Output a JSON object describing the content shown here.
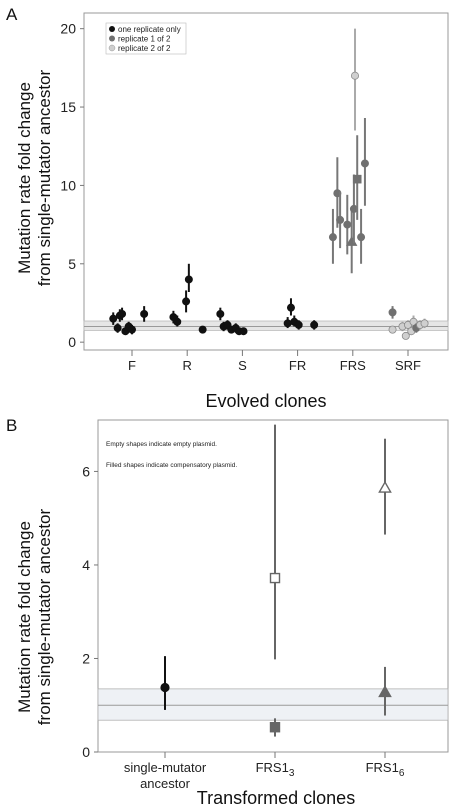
{
  "chart_data": [
    {
      "type": "scatter",
      "panel": "A",
      "ylabel_line1": "Mutation rate fold change",
      "ylabel_line2": "from single-mutator ancestor",
      "xlabel": "Evolved clones",
      "categories": [
        "F",
        "R",
        "S",
        "FR",
        "FRS",
        "SRF"
      ],
      "yticks": [
        "0",
        "5",
        "10",
        "15",
        "20"
      ],
      "ylim": [
        -0.5,
        21
      ],
      "ancestor_band": {
        "center": 1.0,
        "low": 0.75,
        "high": 1.35
      },
      "legend": {
        "placement": "top-left",
        "entries": [
          {
            "label": "one replicate only",
            "color": "#111111"
          },
          {
            "label": "replicate 1 of 2",
            "color": "#707070"
          },
          {
            "label": "replicate 2 of 2",
            "color": "#cfcfcf"
          }
        ]
      },
      "points": [
        {
          "cat": "F",
          "dx": -0.34,
          "y": 1.5,
          "lo": 1.1,
          "hi": 1.9,
          "group": "one",
          "shape": "circle"
        },
        {
          "cat": "F",
          "dx": -0.26,
          "y": 0.9,
          "lo": 0.6,
          "hi": 1.2,
          "group": "one",
          "shape": "circle"
        },
        {
          "cat": "F",
          "dx": -0.22,
          "y": 1.7,
          "lo": 1.3,
          "hi": 2.1,
          "group": "one",
          "shape": "circle"
        },
        {
          "cat": "F",
          "dx": -0.18,
          "y": 1.8,
          "lo": 1.4,
          "hi": 2.2,
          "group": "one",
          "shape": "circle"
        },
        {
          "cat": "F",
          "dx": -0.12,
          "y": 0.7,
          "lo": 0.5,
          "hi": 0.95,
          "group": "one",
          "shape": "circle"
        },
        {
          "cat": "F",
          "dx": -0.06,
          "y": 1.0,
          "lo": 0.7,
          "hi": 1.3,
          "group": "one",
          "shape": "circle"
        },
        {
          "cat": "F",
          "dx": 0.0,
          "y": 0.8,
          "lo": 0.5,
          "hi": 1.1,
          "group": "one",
          "shape": "circle"
        },
        {
          "cat": "F",
          "dx": 0.22,
          "y": 1.8,
          "lo": 1.3,
          "hi": 2.3,
          "group": "one",
          "shape": "circle"
        },
        {
          "cat": "R",
          "dx": -0.25,
          "y": 1.6,
          "lo": 1.2,
          "hi": 2.0,
          "group": "one",
          "shape": "circle"
        },
        {
          "cat": "R",
          "dx": -0.18,
          "y": 1.3,
          "lo": 1.0,
          "hi": 1.7,
          "group": "one",
          "shape": "circle"
        },
        {
          "cat": "R",
          "dx": -0.02,
          "y": 2.6,
          "lo": 1.9,
          "hi": 3.3,
          "group": "one",
          "shape": "circle"
        },
        {
          "cat": "R",
          "dx": 0.03,
          "y": 4.0,
          "lo": 3.2,
          "hi": 5.0,
          "group": "one",
          "shape": "circle"
        },
        {
          "cat": "R",
          "dx": 0.28,
          "y": 0.8,
          "lo": 0.6,
          "hi": 1.0,
          "group": "one",
          "shape": "circle"
        },
        {
          "cat": "S",
          "dx": -0.4,
          "y": 1.8,
          "lo": 1.4,
          "hi": 2.2,
          "group": "one",
          "shape": "circle"
        },
        {
          "cat": "S",
          "dx": -0.34,
          "y": 1.0,
          "lo": 0.7,
          "hi": 1.3,
          "group": "one",
          "shape": "circle"
        },
        {
          "cat": "S",
          "dx": -0.27,
          "y": 1.1,
          "lo": 0.8,
          "hi": 1.4,
          "group": "one",
          "shape": "circle"
        },
        {
          "cat": "S",
          "dx": -0.2,
          "y": 0.8,
          "lo": 0.6,
          "hi": 1.0,
          "group": "one",
          "shape": "circle"
        },
        {
          "cat": "S",
          "dx": -0.12,
          "y": 0.9,
          "lo": 0.6,
          "hi": 1.2,
          "group": "one",
          "shape": "circle"
        },
        {
          "cat": "S",
          "dx": -0.06,
          "y": 0.7,
          "lo": 0.5,
          "hi": 0.9,
          "group": "one",
          "shape": "circle"
        },
        {
          "cat": "S",
          "dx": 0.02,
          "y": 0.7,
          "lo": 0.5,
          "hi": 0.9,
          "group": "one",
          "shape": "circle"
        },
        {
          "cat": "FR",
          "dx": -0.18,
          "y": 1.2,
          "lo": 0.9,
          "hi": 1.6,
          "group": "one",
          "shape": "circle"
        },
        {
          "cat": "FR",
          "dx": -0.12,
          "y": 2.2,
          "lo": 1.7,
          "hi": 2.8,
          "group": "one",
          "shape": "circle"
        },
        {
          "cat": "FR",
          "dx": -0.06,
          "y": 1.3,
          "lo": 1.0,
          "hi": 1.7,
          "group": "one",
          "shape": "circle"
        },
        {
          "cat": "FR",
          "dx": 0.02,
          "y": 1.1,
          "lo": 0.8,
          "hi": 1.4,
          "group": "one",
          "shape": "circle"
        },
        {
          "cat": "FR",
          "dx": 0.3,
          "y": 1.1,
          "lo": 0.8,
          "hi": 1.4,
          "group": "one",
          "shape": "circle"
        },
        {
          "cat": "FRS",
          "dx": -0.36,
          "y": 6.7,
          "lo": 5.0,
          "hi": 8.5,
          "group": "rep1",
          "shape": "circle"
        },
        {
          "cat": "FRS",
          "dx": -0.28,
          "y": 9.5,
          "lo": 7.3,
          "hi": 11.8,
          "group": "rep1",
          "shape": "circle"
        },
        {
          "cat": "FRS",
          "dx": -0.23,
          "y": 7.8,
          "lo": 6.0,
          "hi": 9.6,
          "group": "rep1",
          "shape": "circle"
        },
        {
          "cat": "FRS",
          "dx": -0.1,
          "y": 7.5,
          "lo": 5.6,
          "hi": 9.4,
          "group": "rep1",
          "shape": "circle"
        },
        {
          "cat": "FRS",
          "dx": -0.02,
          "y": 6.4,
          "lo": 4.4,
          "hi": 8.5,
          "group": "rep1",
          "shape": "triangle"
        },
        {
          "cat": "FRS",
          "dx": 0.02,
          "y": 8.5,
          "lo": 6.3,
          "hi": 10.7,
          "group": "rep1",
          "shape": "circle"
        },
        {
          "cat": "FRS",
          "dx": 0.04,
          "y": 17.0,
          "lo": 13.5,
          "hi": 20.0,
          "group": "rep2",
          "shape": "circle"
        },
        {
          "cat": "FRS",
          "dx": 0.08,
          "y": 10.4,
          "lo": 7.8,
          "hi": 13.2,
          "group": "rep1",
          "shape": "square"
        },
        {
          "cat": "FRS",
          "dx": 0.15,
          "y": 6.7,
          "lo": 5.0,
          "hi": 8.5,
          "group": "rep1",
          "shape": "circle"
        },
        {
          "cat": "FRS",
          "dx": 0.22,
          "y": 11.4,
          "lo": 8.7,
          "hi": 14.3,
          "group": "rep1",
          "shape": "circle"
        },
        {
          "cat": "SRF",
          "dx": -0.28,
          "y": 1.9,
          "lo": 1.5,
          "hi": 2.3,
          "group": "rep1",
          "shape": "circle"
        },
        {
          "cat": "SRF",
          "dx": -0.28,
          "y": 0.8,
          "lo": 0.6,
          "hi": 1.0,
          "group": "rep2",
          "shape": "circle"
        },
        {
          "cat": "SRF",
          "dx": -0.1,
          "y": 1.0,
          "lo": 0.7,
          "hi": 1.3,
          "group": "rep2",
          "shape": "circle"
        },
        {
          "cat": "SRF",
          "dx": -0.04,
          "y": 0.4,
          "lo": 0.2,
          "hi": 0.6,
          "group": "rep2",
          "shape": "circle"
        },
        {
          "cat": "SRF",
          "dx": 0.0,
          "y": 1.1,
          "lo": 0.8,
          "hi": 1.4,
          "group": "rep2",
          "shape": "circle"
        },
        {
          "cat": "SRF",
          "dx": 0.06,
          "y": 0.7,
          "lo": 0.5,
          "hi": 0.95,
          "group": "rep2",
          "shape": "circle"
        },
        {
          "cat": "SRF",
          "dx": 0.1,
          "y": 1.3,
          "lo": 1.0,
          "hi": 1.7,
          "group": "rep2",
          "shape": "circle"
        },
        {
          "cat": "SRF",
          "dx": 0.15,
          "y": 0.9,
          "lo": 0.6,
          "hi": 1.2,
          "group": "rep1",
          "shape": "circle"
        },
        {
          "cat": "SRF",
          "dx": 0.22,
          "y": 1.1,
          "lo": 0.8,
          "hi": 1.4,
          "group": "rep2",
          "shape": "circle"
        },
        {
          "cat": "SRF",
          "dx": 0.3,
          "y": 1.2,
          "lo": 0.9,
          "hi": 1.5,
          "group": "rep2",
          "shape": "circle"
        }
      ]
    },
    {
      "type": "scatter",
      "panel": "B",
      "ylabel_line1": "Mutation rate fold change",
      "ylabel_line2": "from single-mutator ancestor",
      "xlabel": "Transformed clones",
      "categories": [
        {
          "line1": "single-mutator",
          "line2": "ancestor"
        },
        {
          "base": "FRS1",
          "sub": "3"
        },
        {
          "base": "FRS1",
          "sub": "6"
        }
      ],
      "yticks": [
        "0",
        "2",
        "4",
        "6"
      ],
      "ylim": [
        0,
        7.1
      ],
      "ancestor_band": {
        "center": 1.0,
        "low": 0.68,
        "high": 1.35
      },
      "notes": [
        "Empty shapes indicate empty plasmid.",
        "Filled shapes indicate compensatory plasmid."
      ],
      "points": [
        {
          "cat": 0,
          "y": 1.38,
          "lo": 0.9,
          "hi": 2.05,
          "shape": "circle",
          "fill": "filled",
          "color": "#111111"
        },
        {
          "cat": 1,
          "y": 3.72,
          "lo": 1.98,
          "hi": 7.0,
          "shape": "square",
          "fill": "empty",
          "color": "#666666"
        },
        {
          "cat": 1,
          "y": 0.53,
          "lo": 0.33,
          "hi": 0.72,
          "shape": "square",
          "fill": "filled",
          "color": "#666666"
        },
        {
          "cat": 2,
          "y": 5.65,
          "lo": 4.65,
          "hi": 6.7,
          "shape": "triangle",
          "fill": "empty",
          "color": "#666666"
        },
        {
          "cat": 2,
          "y": 1.28,
          "lo": 0.78,
          "hi": 1.82,
          "shape": "triangle",
          "fill": "filled",
          "color": "#666666"
        }
      ]
    }
  ],
  "panel_letters": [
    "A",
    "B"
  ]
}
